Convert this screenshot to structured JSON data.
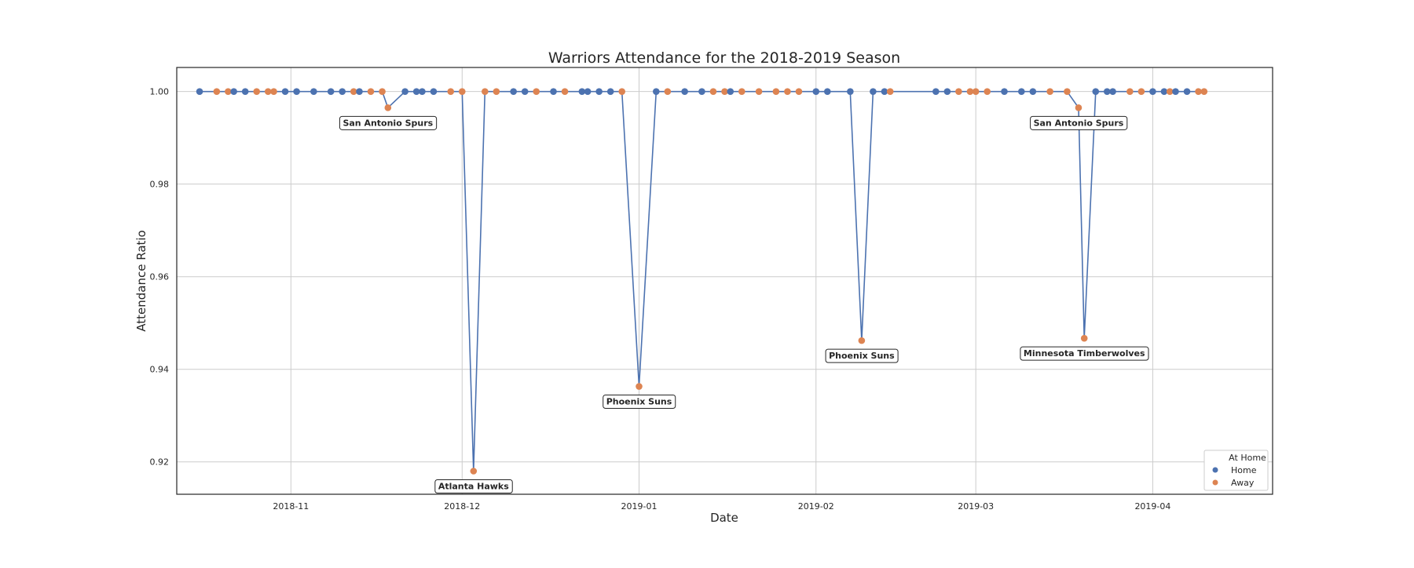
{
  "chart_data": {
    "type": "scatter",
    "title": "Warriors Attendance for the 2018-2019 Season",
    "xlabel": "Date",
    "ylabel": "Attendance Ratio",
    "xlim": [
      "2018-10-12",
      "2019-04-22"
    ],
    "ylim": [
      0.913,
      1.0052
    ],
    "grid": true,
    "x_ticks": [
      "2018-11-01",
      "2018-12-01",
      "2019-01-01",
      "2019-02-01",
      "2019-03-01",
      "2019-04-01"
    ],
    "x_tick_labels": [
      "2018-11",
      "2018-12",
      "2019-01",
      "2019-02",
      "2019-03",
      "2019-04"
    ],
    "y_ticks": [
      0.92,
      0.94,
      0.96,
      0.98,
      1.0
    ],
    "y_tick_labels": [
      "0.92",
      "0.94",
      "0.96",
      "0.98",
      "1.00"
    ],
    "legend": {
      "position": "lower-right",
      "title": "At Home",
      "entries": [
        {
          "label": "Home",
          "color": "#4c72b0"
        },
        {
          "label": "Away",
          "color": "#dd8452"
        }
      ]
    },
    "line_color": "#4c72b0",
    "points": [
      {
        "date": "2018-10-16",
        "ratio": 1.0,
        "home": true
      },
      {
        "date": "2018-10-19",
        "ratio": 1.0,
        "home": false
      },
      {
        "date": "2018-10-21",
        "ratio": 1.0,
        "home": false
      },
      {
        "date": "2018-10-22",
        "ratio": 1.0,
        "home": true
      },
      {
        "date": "2018-10-24",
        "ratio": 1.0,
        "home": true
      },
      {
        "date": "2018-10-26",
        "ratio": 1.0,
        "home": false
      },
      {
        "date": "2018-10-28",
        "ratio": 1.0,
        "home": false
      },
      {
        "date": "2018-10-29",
        "ratio": 1.0,
        "home": false
      },
      {
        "date": "2018-10-31",
        "ratio": 1.0,
        "home": true
      },
      {
        "date": "2018-11-02",
        "ratio": 1.0,
        "home": true
      },
      {
        "date": "2018-11-05",
        "ratio": 1.0,
        "home": true
      },
      {
        "date": "2018-11-08",
        "ratio": 1.0,
        "home": true
      },
      {
        "date": "2018-11-10",
        "ratio": 1.0,
        "home": true
      },
      {
        "date": "2018-11-12",
        "ratio": 1.0,
        "home": false
      },
      {
        "date": "2018-11-13",
        "ratio": 1.0,
        "home": true
      },
      {
        "date": "2018-11-15",
        "ratio": 1.0,
        "home": false
      },
      {
        "date": "2018-11-17",
        "ratio": 1.0,
        "home": false
      },
      {
        "date": "2018-11-18",
        "ratio": 0.9965,
        "home": false
      },
      {
        "date": "2018-11-21",
        "ratio": 1.0,
        "home": true
      },
      {
        "date": "2018-11-23",
        "ratio": 1.0,
        "home": true
      },
      {
        "date": "2018-11-24",
        "ratio": 1.0,
        "home": true
      },
      {
        "date": "2018-11-26",
        "ratio": 1.0,
        "home": true
      },
      {
        "date": "2018-11-29",
        "ratio": 1.0,
        "home": false
      },
      {
        "date": "2018-12-01",
        "ratio": 1.0,
        "home": false
      },
      {
        "date": "2018-12-03",
        "ratio": 0.918,
        "home": false
      },
      {
        "date": "2018-12-05",
        "ratio": 1.0,
        "home": false
      },
      {
        "date": "2018-12-07",
        "ratio": 1.0,
        "home": false
      },
      {
        "date": "2018-12-10",
        "ratio": 1.0,
        "home": true
      },
      {
        "date": "2018-12-12",
        "ratio": 1.0,
        "home": true
      },
      {
        "date": "2018-12-14",
        "ratio": 1.0,
        "home": false
      },
      {
        "date": "2018-12-17",
        "ratio": 1.0,
        "home": true
      },
      {
        "date": "2018-12-19",
        "ratio": 1.0,
        "home": false
      },
      {
        "date": "2018-12-22",
        "ratio": 1.0,
        "home": true
      },
      {
        "date": "2018-12-23",
        "ratio": 1.0,
        "home": true
      },
      {
        "date": "2018-12-25",
        "ratio": 1.0,
        "home": true
      },
      {
        "date": "2018-12-27",
        "ratio": 1.0,
        "home": true
      },
      {
        "date": "2018-12-29",
        "ratio": 1.0,
        "home": false
      },
      {
        "date": "2019-01-01",
        "ratio": 0.9363,
        "home": false
      },
      {
        "date": "2019-01-04",
        "ratio": 1.0,
        "home": true
      },
      {
        "date": "2019-01-06",
        "ratio": 1.0,
        "home": false
      },
      {
        "date": "2019-01-09",
        "ratio": 1.0,
        "home": true
      },
      {
        "date": "2019-01-12",
        "ratio": 1.0,
        "home": true
      },
      {
        "date": "2019-01-14",
        "ratio": 1.0,
        "home": false
      },
      {
        "date": "2019-01-16",
        "ratio": 1.0,
        "home": false
      },
      {
        "date": "2019-01-17",
        "ratio": 1.0,
        "home": true
      },
      {
        "date": "2019-01-19",
        "ratio": 1.0,
        "home": false
      },
      {
        "date": "2019-01-22",
        "ratio": 1.0,
        "home": false
      },
      {
        "date": "2019-01-25",
        "ratio": 1.0,
        "home": false
      },
      {
        "date": "2019-01-27",
        "ratio": 1.0,
        "home": false
      },
      {
        "date": "2019-01-29",
        "ratio": 1.0,
        "home": false
      },
      {
        "date": "2019-02-01",
        "ratio": 1.0,
        "home": true
      },
      {
        "date": "2019-02-03",
        "ratio": 1.0,
        "home": true
      },
      {
        "date": "2019-02-07",
        "ratio": 1.0,
        "home": true
      },
      {
        "date": "2019-02-09",
        "ratio": 0.9462,
        "home": false
      },
      {
        "date": "2019-02-11",
        "ratio": 1.0,
        "home": true
      },
      {
        "date": "2019-02-13",
        "ratio": 1.0,
        "home": true
      },
      {
        "date": "2019-02-14",
        "ratio": 1.0,
        "home": false
      },
      {
        "date": "2019-02-22",
        "ratio": 1.0,
        "home": true
      },
      {
        "date": "2019-02-24",
        "ratio": 1.0,
        "home": true
      },
      {
        "date": "2019-02-26",
        "ratio": 1.0,
        "home": false
      },
      {
        "date": "2019-02-28",
        "ratio": 1.0,
        "home": false
      },
      {
        "date": "2019-03-01",
        "ratio": 1.0,
        "home": false
      },
      {
        "date": "2019-03-03",
        "ratio": 1.0,
        "home": false
      },
      {
        "date": "2019-03-06",
        "ratio": 1.0,
        "home": true
      },
      {
        "date": "2019-03-09",
        "ratio": 1.0,
        "home": true
      },
      {
        "date": "2019-03-11",
        "ratio": 1.0,
        "home": true
      },
      {
        "date": "2019-03-14",
        "ratio": 1.0,
        "home": false
      },
      {
        "date": "2019-03-17",
        "ratio": 1.0,
        "home": false
      },
      {
        "date": "2019-03-19",
        "ratio": 0.9965,
        "home": false
      },
      {
        "date": "2019-03-20",
        "ratio": 0.9467,
        "home": false
      },
      {
        "date": "2019-03-22",
        "ratio": 1.0,
        "home": true
      },
      {
        "date": "2019-03-24",
        "ratio": 1.0,
        "home": true
      },
      {
        "date": "2019-03-25",
        "ratio": 1.0,
        "home": true
      },
      {
        "date": "2019-03-28",
        "ratio": 1.0,
        "home": false
      },
      {
        "date": "2019-03-30",
        "ratio": 1.0,
        "home": false
      },
      {
        "date": "2019-04-01",
        "ratio": 1.0,
        "home": true
      },
      {
        "date": "2019-04-03",
        "ratio": 1.0,
        "home": true
      },
      {
        "date": "2019-04-04",
        "ratio": 1.0,
        "home": false
      },
      {
        "date": "2019-04-05",
        "ratio": 1.0,
        "home": true
      },
      {
        "date": "2019-04-07",
        "ratio": 1.0,
        "home": true
      },
      {
        "date": "2019-04-09",
        "ratio": 1.0,
        "home": false
      },
      {
        "date": "2019-04-10",
        "ratio": 1.0,
        "home": false
      }
    ],
    "annotations": [
      {
        "text": "San Antonio Spurs",
        "date": "2018-11-18",
        "ratio": 0.9965
      },
      {
        "text": "Atlanta Hawks",
        "date": "2018-12-03",
        "ratio": 0.918
      },
      {
        "text": "Phoenix Suns",
        "date": "2019-01-01",
        "ratio": 0.9363
      },
      {
        "text": "Phoenix Suns",
        "date": "2019-02-09",
        "ratio": 0.9462
      },
      {
        "text": "San Antonio Spurs",
        "date": "2019-03-19",
        "ratio": 0.9965
      },
      {
        "text": "Minnesota Timberwolves",
        "date": "2019-03-20",
        "ratio": 0.9467
      }
    ]
  }
}
